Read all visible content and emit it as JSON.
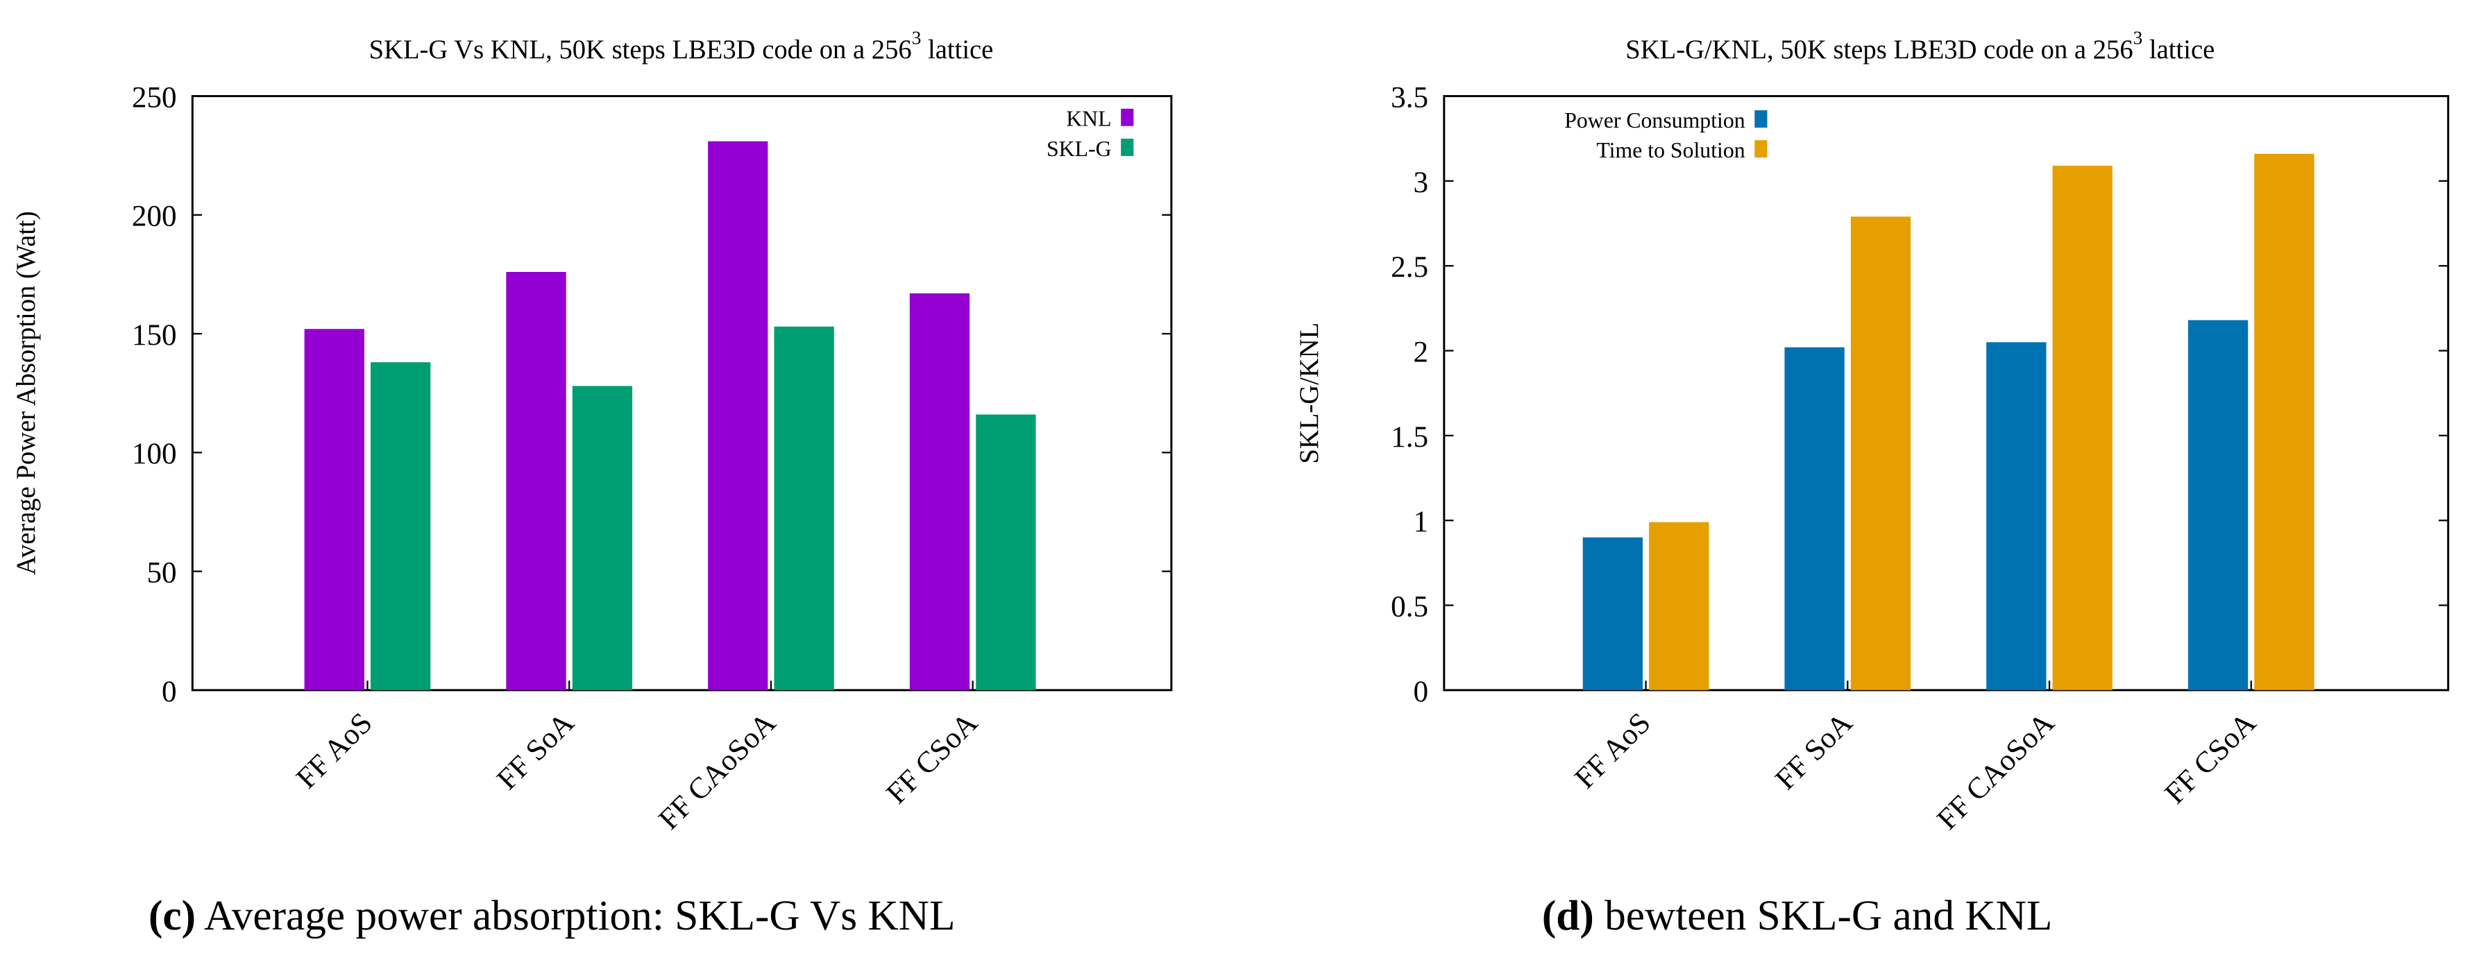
{
  "chart_data": [
    {
      "type": "bar",
      "title": "SKL-G Vs KNL, 50K steps LBE3D code on a 256",
      "title_sup": "3",
      "title_tail": " lattice",
      "xlabel": "",
      "ylabel": "Average Power Absorption (Watt)",
      "ylim": [
        0,
        250
      ],
      "yticks": [
        0,
        50,
        100,
        150,
        200,
        250
      ],
      "categories": [
        "FF AoS",
        "FF SoA",
        "FF CAoSoA",
        "FF CSoA"
      ],
      "legend_position": "top-right",
      "grid": false,
      "series": [
        {
          "name": "KNL",
          "color": "#9400d3",
          "values": [
            152,
            176,
            231,
            167
          ]
        },
        {
          "name": "SKL-G",
          "color": "#009e73",
          "values": [
            138,
            128,
            153,
            116
          ]
        }
      ],
      "caption_label": "(c)",
      "caption": "Average power absorption: SKL-G Vs KNL"
    },
    {
      "type": "bar",
      "title": "SKL-G/KNL, 50K steps LBE3D code on a 256",
      "title_sup": "3",
      "title_tail": " lattice",
      "xlabel": "",
      "ylabel": "SKL-G/KNL",
      "ylim": [
        0,
        3.5
      ],
      "yticks": [
        0,
        0.5,
        1,
        1.5,
        2,
        2.5,
        3,
        3.5
      ],
      "categories": [
        "FF AoS",
        "FF SoA",
        "FF CAoSoA",
        "FF CSoA"
      ],
      "legend_position": "top-left",
      "grid": false,
      "series": [
        {
          "name": "Power Consumption",
          "color": "#0072b2",
          "values": [
            0.9,
            2.02,
            2.05,
            2.18
          ]
        },
        {
          "name": "Time to Solution",
          "color": "#e69f00",
          "values": [
            0.99,
            2.79,
            3.09,
            3.16
          ]
        }
      ],
      "caption_label": "(d)",
      "caption": "bewteen SKL-G and KNL"
    }
  ]
}
